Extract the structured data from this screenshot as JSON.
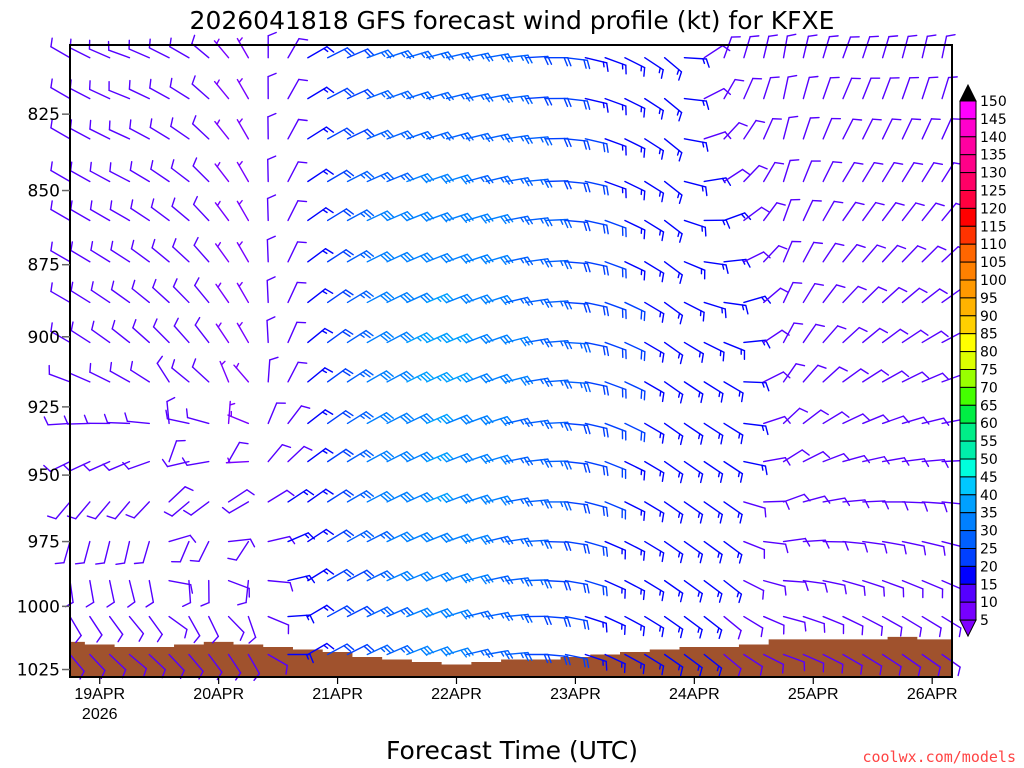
{
  "chart_data": {
    "type": "wind-barb",
    "title": "2026041818 GFS forecast wind profile (kt) for KFXE",
    "xlabel": "Forecast Time (UTC)",
    "ylabel": "",
    "credit": "coolwx.com/models",
    "x_units": "forecast hours from 2026041818",
    "xlim": [
      0,
      178
    ],
    "x_ticks": [
      {
        "hour": 6,
        "label": "19APR",
        "sublabel": "2026"
      },
      {
        "hour": 30,
        "label": "20APR"
      },
      {
        "hour": 54,
        "label": "21APR"
      },
      {
        "hour": 78,
        "label": "22APR"
      },
      {
        "hour": 102,
        "label": "23APR"
      },
      {
        "hour": 126,
        "label": "24APR"
      },
      {
        "hour": 150,
        "label": "25APR"
      },
      {
        "hour": 174,
        "label": "26APR"
      }
    ],
    "y_units": "hPa",
    "ylim": [
      803,
      1028
    ],
    "y_scale": "log",
    "y_ticks": [
      825,
      850,
      875,
      900,
      925,
      950,
      975,
      1000,
      1025
    ],
    "barb_interval_hours": 4,
    "barb_levels": [
      807,
      820,
      833,
      847,
      860,
      874,
      888,
      902,
      916,
      931,
      945,
      960,
      975,
      990,
      1004,
      1019
    ],
    "grid_times": [
      0,
      12,
      24,
      36,
      48,
      60,
      72,
      84,
      96,
      108,
      120,
      132,
      144,
      156,
      168,
      180
    ],
    "grid_levels": [
      810,
      910,
      1010
    ],
    "wind_dir_deg": [
      [
        300,
        290,
        300,
        330,
        60,
        70,
        75,
        80,
        90,
        110,
        130,
        20,
        10,
        20,
        15,
        10
      ],
      [
        300,
        310,
        320,
        330,
        50,
        60,
        65,
        70,
        85,
        110,
        125,
        120,
        30,
        50,
        60,
        70
      ],
      [
        140,
        130,
        140,
        150,
        60,
        65,
        70,
        80,
        95,
        115,
        125,
        130,
        110,
        120,
        125,
        125
      ]
    ],
    "wind_speed_kt": [
      [
        10,
        10,
        10,
        5,
        15,
        25,
        25,
        25,
        20,
        15,
        15,
        10,
        10,
        10,
        10,
        10
      ],
      [
        10,
        10,
        10,
        5,
        15,
        30,
        35,
        30,
        25,
        20,
        15,
        15,
        10,
        10,
        10,
        10
      ],
      [
        10,
        10,
        10,
        10,
        15,
        25,
        30,
        25,
        20,
        15,
        15,
        12,
        10,
        10,
        10,
        10
      ]
    ],
    "surface_pressure_hours": [
      0,
      6,
      12,
      18,
      24,
      30,
      36,
      42,
      48,
      54,
      60,
      66,
      72,
      78,
      84,
      90,
      96,
      102,
      108,
      114,
      120,
      126,
      132,
      138,
      144,
      150,
      156,
      162,
      168,
      174,
      180
    ],
    "surface_pressure_hpa": [
      1014,
      1015,
      1016,
      1016,
      1015,
      1014,
      1015,
      1016,
      1017,
      1018,
      1020,
      1021,
      1022,
      1023,
      1022,
      1021,
      1021,
      1020,
      1019,
      1018,
      1017,
      1016,
      1016,
      1015,
      1013,
      1013,
      1013,
      1013,
      1012,
      1013,
      1013
    ],
    "terrain_color": "#a0522d",
    "colorbar": {
      "labels": [
        "150",
        "145",
        "140",
        "135",
        "130",
        "125",
        "120",
        "115",
        "110",
        "105",
        "100",
        "95",
        "90",
        "85",
        "80",
        "75",
        "70",
        "65",
        "60",
        "55",
        "50",
        "45",
        "40",
        "35",
        "30",
        "25",
        "20",
        "15",
        "10",
        "5"
      ],
      "colors": [
        "#ff00ff",
        "#ff00cc",
        "#ff00a0",
        "#ff0088",
        "#ff0066",
        "#ff0040",
        "#ff0000",
        "#ff3300",
        "#ff6600",
        "#ff8000",
        "#ff9900",
        "#ffb300",
        "#ffd000",
        "#ffff00",
        "#ddff00",
        "#99ff00",
        "#44ff00",
        "#00ee44",
        "#00ee88",
        "#00eeaa",
        "#00ffdd",
        "#00c8ff",
        "#00a0ff",
        "#0080ff",
        "#0060ff",
        "#0040ff",
        "#0000ff",
        "#5500ff",
        "#7700ff"
      ],
      "over_color": "#000000",
      "under_color": "#8000ff"
    }
  }
}
